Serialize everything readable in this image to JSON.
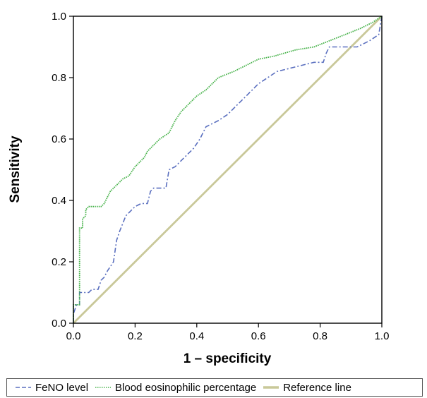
{
  "chart_data": {
    "type": "line",
    "xlabel": "1 – specificity",
    "ylabel": "Sensitivity",
    "xlim": [
      0,
      1
    ],
    "ylim": [
      0,
      1
    ],
    "xticks": [
      "0.0",
      "0.2",
      "0.4",
      "0.6",
      "0.8",
      "1.0"
    ],
    "yticks": [
      "0.0",
      "0.2",
      "0.4",
      "0.6",
      "0.8",
      "1.0"
    ],
    "grid": false,
    "legend_position": "bottom",
    "series": [
      {
        "name": "FeNO level",
        "color": "#5a6fbf",
        "dash": "dash-dot",
        "x": [
          0.0,
          0.0,
          0.01,
          0.02,
          0.02,
          0.04,
          0.05,
          0.06,
          0.08,
          0.09,
          0.1,
          0.11,
          0.13,
          0.14,
          0.15,
          0.17,
          0.18,
          0.2,
          0.22,
          0.24,
          0.25,
          0.26,
          0.28,
          0.3,
          0.31,
          0.33,
          0.35,
          0.37,
          0.39,
          0.41,
          0.43,
          0.45,
          0.47,
          0.5,
          0.52,
          0.55,
          0.58,
          0.6,
          0.63,
          0.66,
          0.7,
          0.74,
          0.78,
          0.81,
          0.82,
          0.83,
          0.84,
          0.88,
          0.92,
          0.96,
          0.99,
          1.0
        ],
        "y": [
          0.0,
          0.03,
          0.06,
          0.06,
          0.1,
          0.1,
          0.1,
          0.11,
          0.11,
          0.14,
          0.15,
          0.17,
          0.2,
          0.27,
          0.3,
          0.35,
          0.36,
          0.38,
          0.39,
          0.39,
          0.43,
          0.44,
          0.44,
          0.44,
          0.5,
          0.51,
          0.53,
          0.55,
          0.57,
          0.6,
          0.64,
          0.65,
          0.66,
          0.68,
          0.7,
          0.73,
          0.76,
          0.78,
          0.8,
          0.82,
          0.83,
          0.84,
          0.85,
          0.85,
          0.88,
          0.9,
          0.9,
          0.9,
          0.9,
          0.92,
          0.94,
          1.0
        ]
      },
      {
        "name": "Blood eosinophilic percentage",
        "color": "#47b24a",
        "dash": "dotted",
        "x": [
          0.0,
          0.0,
          0.02,
          0.02,
          0.03,
          0.03,
          0.04,
          0.04,
          0.05,
          0.07,
          0.09,
          0.1,
          0.11,
          0.12,
          0.14,
          0.16,
          0.18,
          0.2,
          0.23,
          0.24,
          0.26,
          0.28,
          0.31,
          0.33,
          0.35,
          0.37,
          0.39,
          0.4,
          0.43,
          0.45,
          0.47,
          0.52,
          0.56,
          0.6,
          0.65,
          0.72,
          0.78,
          0.83,
          0.88,
          0.93,
          0.97,
          1.0
        ],
        "y": [
          0.0,
          0.06,
          0.06,
          0.31,
          0.31,
          0.34,
          0.35,
          0.37,
          0.38,
          0.38,
          0.38,
          0.39,
          0.41,
          0.43,
          0.45,
          0.47,
          0.48,
          0.51,
          0.54,
          0.56,
          0.58,
          0.6,
          0.62,
          0.66,
          0.69,
          0.71,
          0.73,
          0.74,
          0.76,
          0.78,
          0.8,
          0.82,
          0.84,
          0.86,
          0.87,
          0.89,
          0.9,
          0.92,
          0.94,
          0.96,
          0.98,
          1.0
        ]
      },
      {
        "name": "Reference line",
        "color": "#c9c899",
        "dash": "solid",
        "x": [
          0.0,
          1.0
        ],
        "y": [
          0.0,
          1.0
        ]
      }
    ]
  }
}
